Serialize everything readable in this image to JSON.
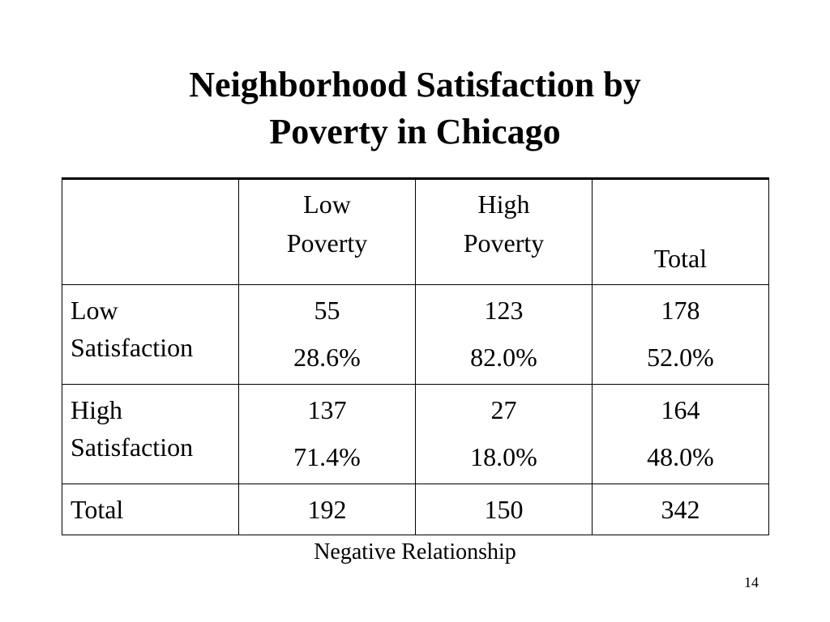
{
  "slide": {
    "title_line1": "Neighborhood Satisfaction by",
    "title_line2": "Poverty in Chicago",
    "footnote": "Negative Relationship",
    "page_number": "14"
  },
  "table": {
    "corner": "",
    "columns": [
      {
        "line1": "Low",
        "line2": "Poverty"
      },
      {
        "line1": "High",
        "line2": "Poverty"
      },
      {
        "line1": "",
        "line2": "Total"
      }
    ],
    "rows": [
      {
        "label_line1": "Low",
        "label_line2": "Satisfaction",
        "cells": [
          {
            "count": "55",
            "pct": "28.6%"
          },
          {
            "count": "123",
            "pct": "82.0%"
          },
          {
            "count": "178",
            "pct": "52.0%"
          }
        ]
      },
      {
        "label_line1": "High",
        "label_line2": "Satisfaction",
        "cells": [
          {
            "count": "137",
            "pct": "71.4%"
          },
          {
            "count": "27",
            "pct": "18.0%"
          },
          {
            "count": "164",
            "pct": "48.0%"
          }
        ]
      }
    ],
    "total_row": {
      "label": "Total",
      "cells": [
        "192",
        "150",
        "342"
      ]
    }
  }
}
